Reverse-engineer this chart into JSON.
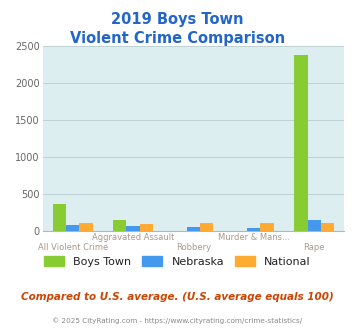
{
  "title_line1": "2019 Boys Town",
  "title_line2": "Violent Crime Comparison",
  "categories_top": [
    "",
    "Aggravated Assault",
    "",
    "Murder & Mans...",
    ""
  ],
  "categories_bot": [
    "All Violent Crime",
    "",
    "Robbery",
    "",
    "Rape"
  ],
  "boys_town": [
    360,
    145,
    0,
    0,
    2380
  ],
  "nebraska": [
    78,
    72,
    48,
    42,
    152
  ],
  "national": [
    102,
    98,
    112,
    102,
    108
  ],
  "boys_town_color": "#88cc33",
  "nebraska_color": "#4499ee",
  "national_color": "#ffaa33",
  "bg_color": "#ddeef0",
  "title_color": "#2266cc",
  "xlabel_color": "#aa9988",
  "legend_label_color": "#222222",
  "footer_text": "Compared to U.S. average. (U.S. average equals 100)",
  "copyright_text": "© 2025 CityRating.com - https://www.cityrating.com/crime-statistics/",
  "footer_color": "#cc4400",
  "copyright_color": "#888888",
  "ylim": [
    0,
    2500
  ],
  "yticks": [
    0,
    500,
    1000,
    1500,
    2000,
    2500
  ],
  "bar_width": 0.22,
  "grid_color": "#b8cdd0",
  "spine_color": "#aabbbb"
}
